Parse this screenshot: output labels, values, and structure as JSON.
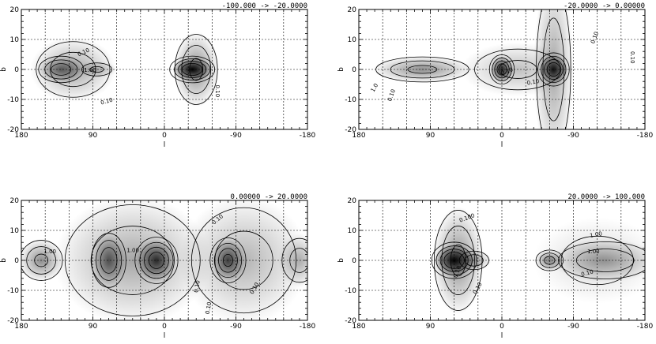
{
  "chart_data": [
    {
      "type": "contour",
      "title": "-100.000 -> -20.0000",
      "xlabel": "l",
      "ylabel": "b",
      "xlim": [
        180,
        -180
      ],
      "ylim": [
        -20,
        20
      ],
      "xticks": [
        "180",
        "90",
        "0",
        "-90",
        "-180"
      ],
      "yticks": [
        "20",
        "10",
        "0",
        "-10",
        "-20"
      ],
      "grid": true,
      "contour_labels": [
        "0.10",
        "1.00",
        "0.10",
        "0.10"
      ],
      "blobs": [
        {
          "l": 130,
          "b": 0,
          "sl": 16,
          "sb": 2.5,
          "a": 0.55
        },
        {
          "l": 115,
          "b": 0,
          "sl": 30,
          "sb": 6,
          "a": 0.35
        },
        {
          "l": 85,
          "b": 0,
          "sl": 14,
          "sb": 1.6,
          "a": 0.25
        },
        {
          "l": -35,
          "b": 0,
          "sl": 14,
          "sb": 2.2,
          "a": 1.0
        },
        {
          "l": -40,
          "b": 0,
          "sl": 16,
          "sb": 7,
          "a": 0.45
        }
      ]
    },
    {
      "type": "contour",
      "title": "-20.0000 -> 0.00000",
      "xlabel": "l",
      "ylabel": "b",
      "xlim": [
        180,
        -180
      ],
      "ylim": [
        -20,
        20
      ],
      "xticks": [
        "180",
        "90",
        "0",
        "-90",
        "-180"
      ],
      "yticks": [
        "20",
        "10",
        "0",
        "-10",
        "-20"
      ],
      "grid": true,
      "contour_labels": [
        "0.10",
        "0.10",
        "0.10",
        "0.10",
        "0.10",
        "1.0"
      ],
      "blobs": [
        {
          "l": 100,
          "b": 0,
          "sl": 35,
          "sb": 2.5,
          "a": 0.45
        },
        {
          "l": 0,
          "b": 0,
          "sl": 8,
          "sb": 2.5,
          "a": 0.85
        },
        {
          "l": -65,
          "b": 0,
          "sl": 10,
          "sb": 2.8,
          "a": 0.9
        },
        {
          "l": -65,
          "b": 0,
          "sl": 14,
          "sb": 18,
          "a": 0.35
        },
        {
          "l": -20,
          "b": 0,
          "sl": 40,
          "sb": 5,
          "a": 0.25
        }
      ]
    },
    {
      "type": "contour",
      "title": "0.00000 -> 20.0000",
      "xlabel": "l",
      "ylabel": "b",
      "xlim": [
        180,
        -180
      ],
      "ylim": [
        -20,
        20
      ],
      "xticks": [
        "180",
        "90",
        "0",
        "-90",
        "-180"
      ],
      "yticks": [
        "20",
        "10",
        "0",
        "-10",
        "-20"
      ],
      "grid": true,
      "contour_labels": [
        "1.00",
        "0.10",
        "0.10",
        "0.10",
        "1.00",
        "0.10"
      ],
      "blobs": [
        {
          "l": 155,
          "b": 0,
          "sl": 16,
          "sb": 4,
          "a": 0.45
        },
        {
          "l": 70,
          "b": 0,
          "sl": 12,
          "sb": 5,
          "a": 0.6
        },
        {
          "l": 10,
          "b": 0,
          "sl": 14,
          "sb": 4,
          "a": 0.8
        },
        {
          "l": 40,
          "b": 0,
          "sl": 55,
          "sb": 12,
          "a": 0.35
        },
        {
          "l": -80,
          "b": 0,
          "sl": 12,
          "sb": 4,
          "a": 0.7
        },
        {
          "l": -100,
          "b": 0,
          "sl": 45,
          "sb": 12,
          "a": 0.3
        },
        {
          "l": -170,
          "b": 0,
          "sl": 15,
          "sb": 5,
          "a": 0.3
        }
      ]
    },
    {
      "type": "contour",
      "title": "20.0000 -> 100.000",
      "xlabel": "l",
      "ylabel": "b",
      "xlim": [
        180,
        -180
      ],
      "ylim": [
        -20,
        20
      ],
      "xticks": [
        "180",
        "90",
        "0",
        "-90",
        "-180"
      ],
      "yticks": [
        "20",
        "10",
        "0",
        "-10",
        "-20"
      ],
      "grid": true,
      "contour_labels": [
        "0.100",
        "1.00",
        "0.10",
        "0.10",
        "1.00",
        "0.10"
      ],
      "blobs": [
        {
          "l": 60,
          "b": 0,
          "sl": 14,
          "sb": 3,
          "a": 1.0
        },
        {
          "l": 55,
          "b": 0,
          "sl": 18,
          "sb": 10,
          "a": 0.45
        },
        {
          "l": 35,
          "b": 0,
          "sl": 12,
          "sb": 2,
          "a": 0.35
        },
        {
          "l": -60,
          "b": 0,
          "sl": 10,
          "sb": 2,
          "a": 0.5
        },
        {
          "l": -130,
          "b": 0,
          "sl": 38,
          "sb": 4,
          "a": 0.35
        },
        {
          "l": -120,
          "b": 0,
          "sl": 45,
          "sb": 8,
          "a": 0.15
        }
      ]
    }
  ]
}
